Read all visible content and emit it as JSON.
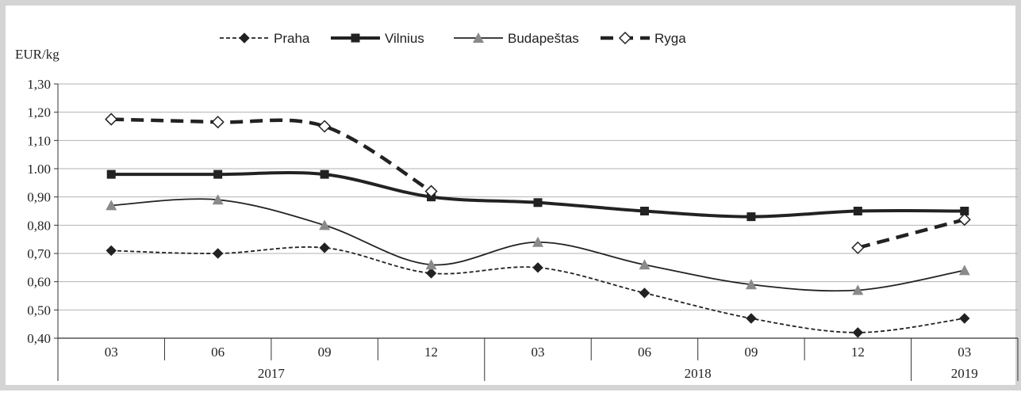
{
  "chart_data": {
    "type": "line",
    "ylabel": "EUR/kg",
    "ylim": [
      0.4,
      1.3
    ],
    "y_ticks": [
      "1,30",
      "1,20",
      "1,10",
      "1.00",
      "0,90",
      "0,80",
      "0,70",
      "0,60",
      "0,50",
      "0,40"
    ],
    "categories": [
      "03",
      "06",
      "09",
      "12",
      "03",
      "06",
      "09",
      "12",
      "03"
    ],
    "years": [
      {
        "label": "2017",
        "from": 0,
        "to": 3
      },
      {
        "label": "2018",
        "from": 4,
        "to": 7
      },
      {
        "label": "2019",
        "from": 8,
        "to": 8
      }
    ],
    "grid": true,
    "legend_position": "top",
    "series": [
      {
        "name": "Praha",
        "style": "dotted-diamond",
        "color": "#222222",
        "values": [
          0.71,
          0.7,
          0.72,
          0.63,
          0.65,
          0.56,
          0.47,
          0.42,
          0.47
        ]
      },
      {
        "name": "Vilnius",
        "style": "thick-square",
        "color": "#222222",
        "values": [
          0.98,
          0.98,
          0.98,
          0.9,
          0.88,
          0.85,
          0.83,
          0.85,
          0.85
        ]
      },
      {
        "name": "Budapeštas",
        "style": "thin-triangle",
        "color": "#222222",
        "values": [
          0.87,
          0.89,
          0.8,
          0.66,
          0.74,
          0.66,
          0.59,
          0.57,
          0.64
        ]
      },
      {
        "name": "Ryga",
        "style": "dashed-hollow-diamond",
        "color": "#222222",
        "values": [
          1.175,
          1.165,
          1.15,
          0.92,
          null,
          null,
          null,
          0.72,
          0.82
        ]
      }
    ]
  }
}
